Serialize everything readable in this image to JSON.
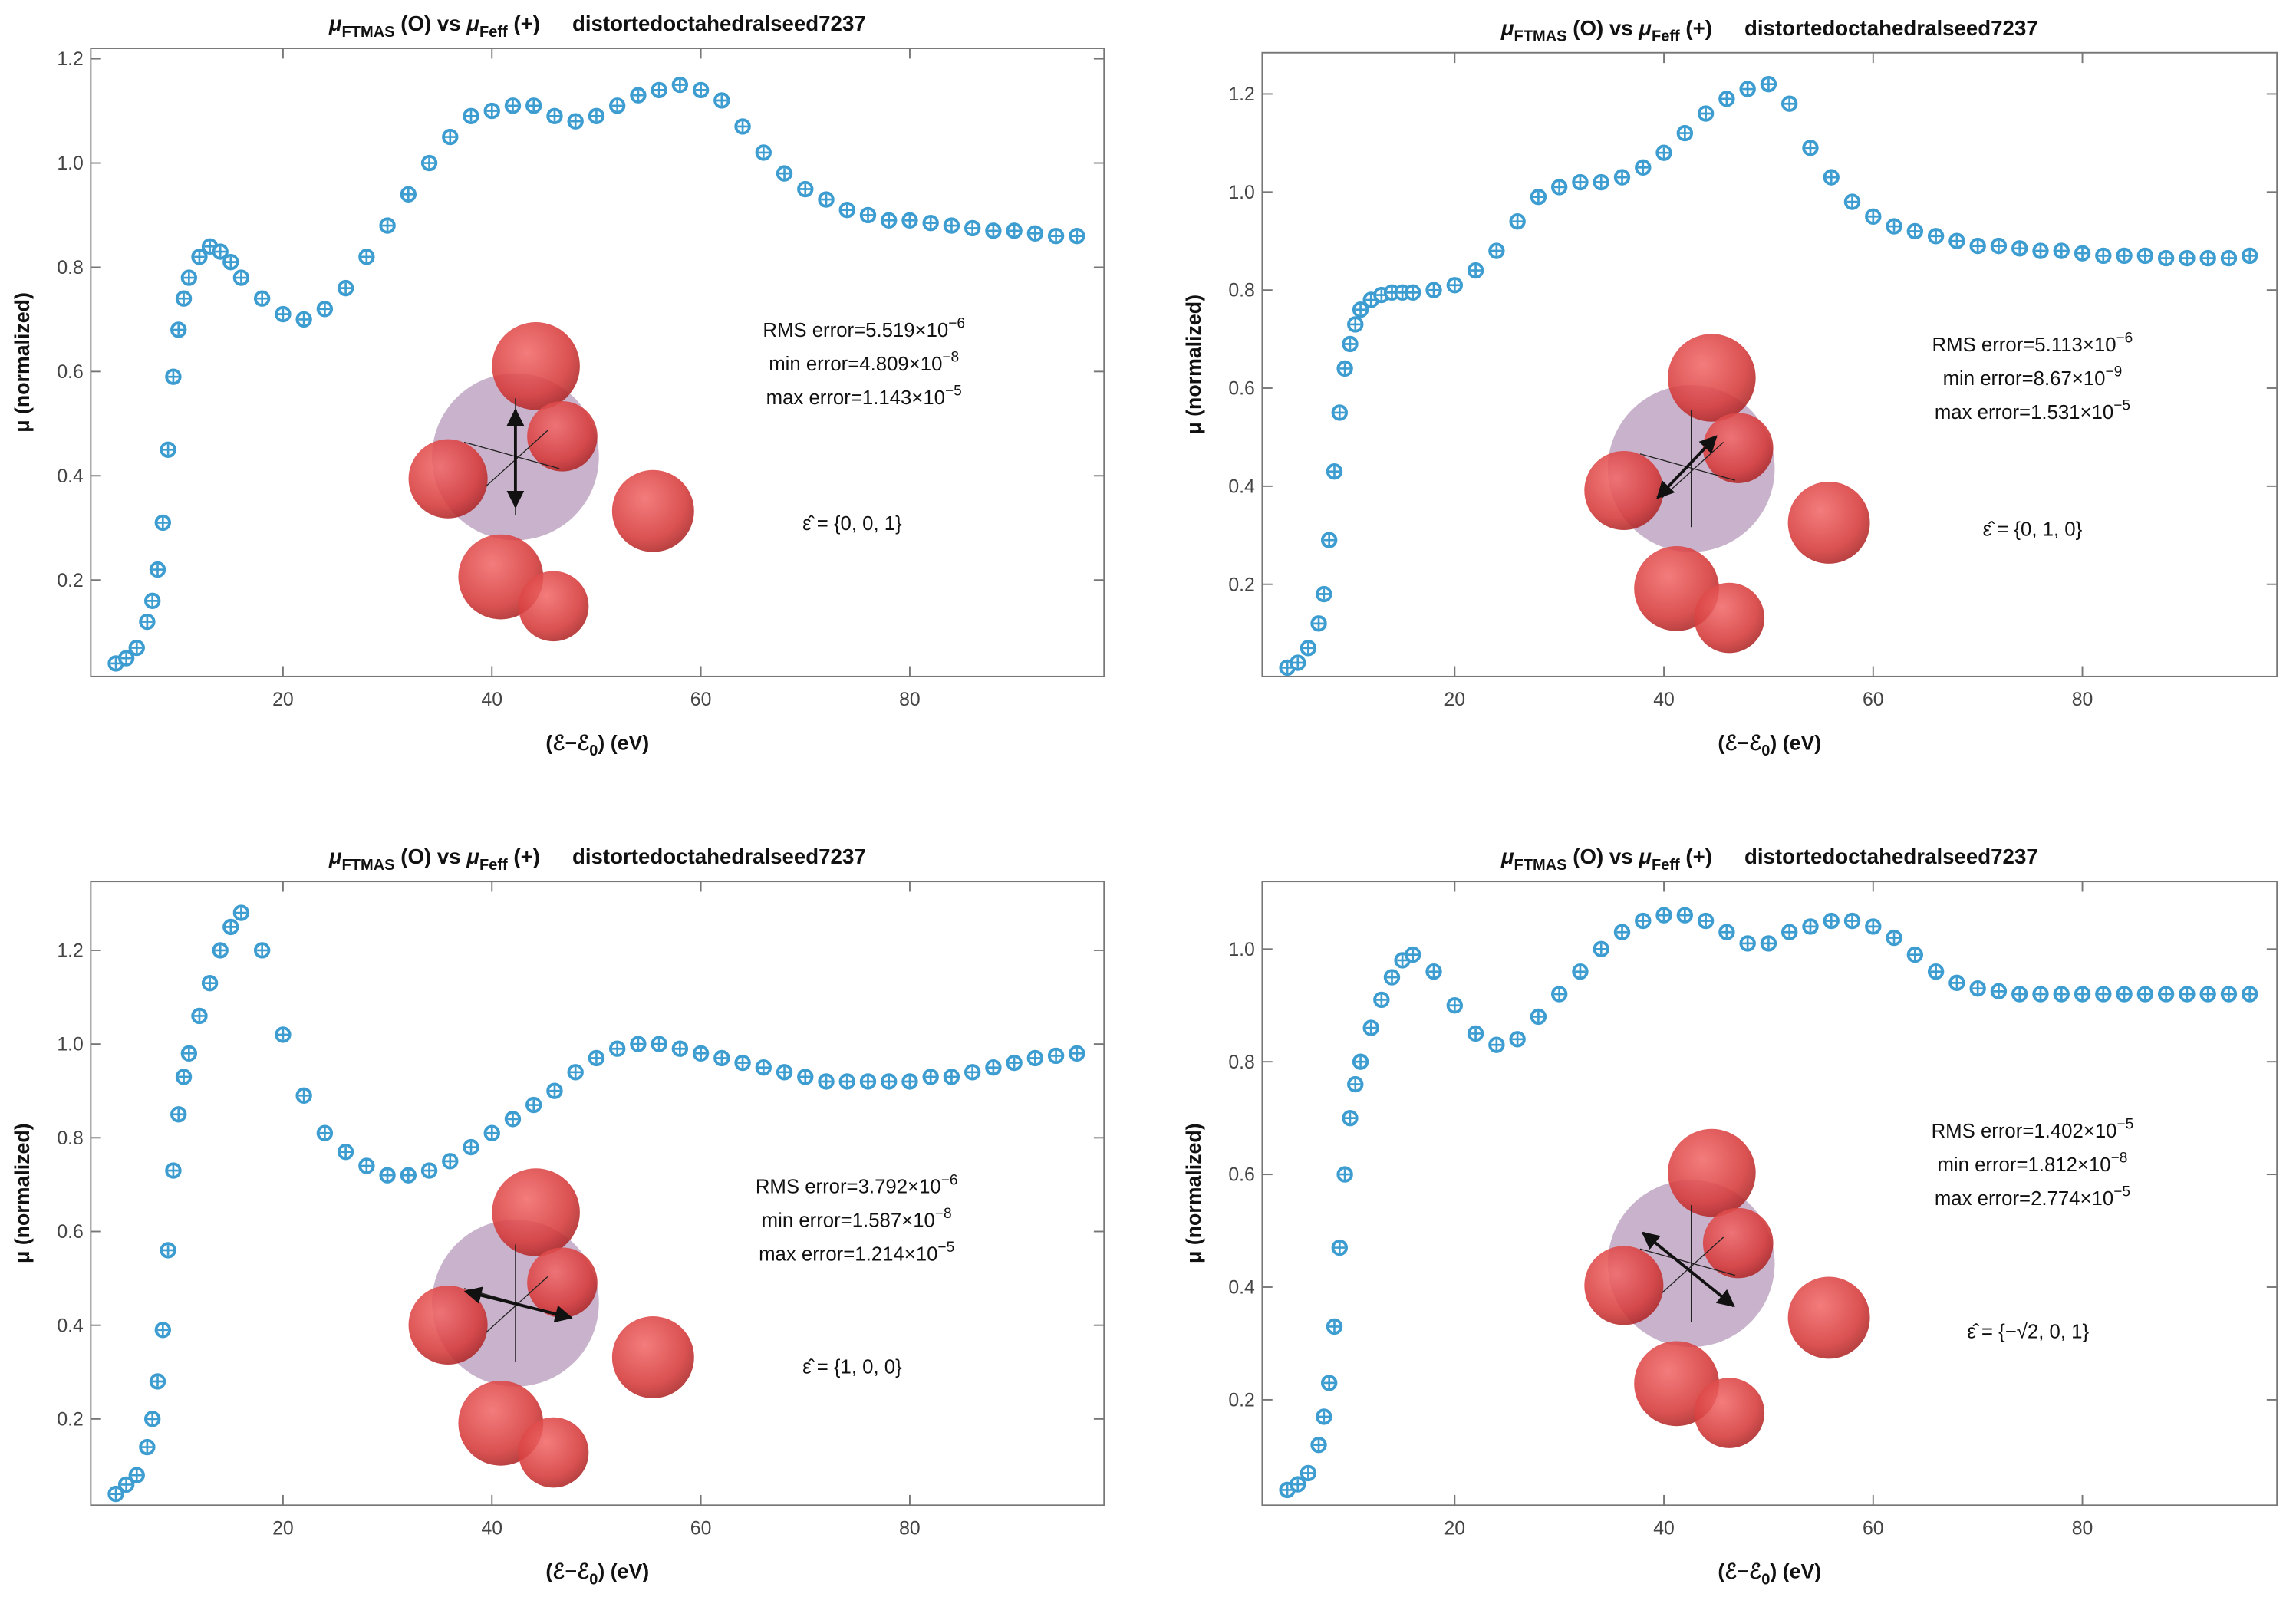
{
  "chart_data": [
    {
      "type": "scatter",
      "title_parts": [
        "μ",
        "FTMAS",
        " (O) vs ",
        "μ",
        "Feff",
        " (+)",
        "distortedoctahedralseed7237"
      ],
      "x_label": [
        "(ℰ−ℰ",
        "0",
        ") (eV)"
      ],
      "y_label": "μ (normalized)",
      "color": "#3d9dd0",
      "xlim": [
        1.6,
        98.6
      ],
      "ylim": [
        0.015,
        1.22
      ],
      "xticks": [
        20,
        40,
        60,
        80
      ],
      "yticks": [
        0.2,
        0.4,
        0.6,
        0.8,
        {
          "value": 1,
          "label": "1.0"
        },
        1.2
      ],
      "x": [
        4,
        5,
        6,
        7,
        7.5,
        8,
        8.5,
        9,
        9.5,
        10,
        10.5,
        11,
        12,
        13,
        14,
        15,
        16,
        18,
        20,
        22,
        24,
        26,
        28,
        30,
        32,
        34,
        36,
        38,
        40,
        42,
        44,
        46,
        48,
        50,
        52,
        54,
        56,
        58,
        60,
        62,
        64,
        66,
        68,
        70,
        72,
        74,
        76,
        78,
        80,
        82,
        84,
        86,
        88,
        90,
        92,
        94,
        96
      ],
      "values": [
        0.04,
        0.05,
        0.07,
        0.12,
        0.16,
        0.22,
        0.31,
        0.45,
        0.59,
        0.68,
        0.74,
        0.78,
        0.82,
        0.84,
        0.83,
        0.81,
        0.78,
        0.74,
        0.71,
        0.7,
        0.72,
        0.76,
        0.82,
        0.88,
        0.94,
        1.0,
        1.05,
        1.09,
        1.1,
        1.11,
        1.11,
        1.09,
        1.08,
        1.09,
        1.11,
        1.13,
        1.14,
        1.15,
        1.14,
        1.12,
        1.07,
        1.02,
        0.98,
        0.95,
        0.93,
        0.91,
        0.9,
        0.89,
        0.89,
        0.885,
        0.88,
        0.875,
        0.87,
        0.87,
        0.865,
        0.86,
        0.86
      ],
      "annotations": [
        [
          "RMS error=5.519×10",
          "−6"
        ],
        [
          "min error=4.809×10",
          "−8"
        ],
        [
          "max error=1.143×10",
          "−5"
        ]
      ],
      "polarization": "ε̂ = {0, 0, 1}"
    },
    {
      "type": "scatter",
      "title_parts": [
        "μ",
        "FTMAS",
        " (O) vs ",
        "μ",
        "Feff",
        " (+)",
        "distortedoctahedralseed7237"
      ],
      "x_label": [
        "(ℰ−ℰ",
        "0",
        ") (eV)"
      ],
      "y_label": "μ (normalized)",
      "color": "#3d9dd0",
      "xlim": [
        1.6,
        98.6
      ],
      "ylim": [
        0.012,
        1.284
      ],
      "xticks": [
        20,
        40,
        60,
        80
      ],
      "yticks": [
        0.2,
        0.4,
        0.6,
        0.8,
        {
          "value": 1,
          "label": "1.0"
        },
        1.2
      ],
      "x": [
        4,
        5,
        6,
        7,
        7.5,
        8,
        8.5,
        9,
        9.5,
        10,
        10.5,
        11,
        12,
        13,
        14,
        15,
        16,
        18,
        20,
        22,
        24,
        26,
        28,
        30,
        32,
        34,
        36,
        38,
        40,
        42,
        44,
        46,
        48,
        50,
        52,
        54,
        56,
        58,
        60,
        62,
        64,
        66,
        68,
        70,
        72,
        74,
        76,
        78,
        80,
        82,
        84,
        86,
        88,
        90,
        92,
        94,
        96
      ],
      "values": [
        0.03,
        0.04,
        0.07,
        0.12,
        0.18,
        0.29,
        0.43,
        0.55,
        0.64,
        0.69,
        0.73,
        0.76,
        0.78,
        0.79,
        0.795,
        0.795,
        0.795,
        0.8,
        0.81,
        0.84,
        0.88,
        0.94,
        0.99,
        1.01,
        1.02,
        1.02,
        1.03,
        1.05,
        1.08,
        1.12,
        1.16,
        1.19,
        1.21,
        1.22,
        1.18,
        1.09,
        1.03,
        0.98,
        0.95,
        0.93,
        0.92,
        0.91,
        0.9,
        0.89,
        0.89,
        0.885,
        0.88,
        0.88,
        0.875,
        0.87,
        0.87,
        0.87,
        0.865,
        0.865,
        0.865,
        0.865,
        0.87
      ],
      "annotations": [
        [
          "RMS error=5.113×10",
          "−6"
        ],
        [
          "min error=8.67×10",
          "−9"
        ],
        [
          "max error=1.531×10",
          "−5"
        ]
      ],
      "polarization": "ε̂ = {0, 1, 0}"
    },
    {
      "type": "scatter",
      "title_parts": [
        "μ",
        "FTMAS",
        " (O) vs ",
        "μ",
        "Feff",
        " (+)",
        "distortedoctahedralseed7237"
      ],
      "x_label": [
        "(ℰ−ℰ",
        "0",
        ") (eV)"
      ],
      "y_label": "μ (normalized)",
      "color": "#3d9dd0",
      "xlim": [
        1.6,
        98.6
      ],
      "ylim": [
        0.016,
        1.347
      ],
      "xticks": [
        20,
        40,
        60,
        80
      ],
      "yticks": [
        0.2,
        0.4,
        0.6,
        0.8,
        {
          "value": 1,
          "label": "1.0"
        },
        1.2
      ],
      "x": [
        4,
        5,
        6,
        7,
        7.5,
        8,
        8.5,
        9,
        9.5,
        10,
        10.5,
        11,
        12,
        13,
        14,
        15,
        16,
        18,
        20,
        22,
        24,
        26,
        28,
        30,
        32,
        34,
        36,
        38,
        40,
        42,
        44,
        46,
        48,
        50,
        52,
        54,
        56,
        58,
        60,
        62,
        64,
        66,
        68,
        70,
        72,
        74,
        76,
        78,
        80,
        82,
        84,
        86,
        88,
        90,
        92,
        94,
        96
      ],
      "values": [
        0.04,
        0.06,
        0.08,
        0.14,
        0.2,
        0.28,
        0.39,
        0.56,
        0.73,
        0.85,
        0.93,
        0.98,
        1.06,
        1.13,
        1.2,
        1.25,
        1.28,
        1.2,
        1.02,
        0.89,
        0.81,
        0.77,
        0.74,
        0.72,
        0.72,
        0.73,
        0.75,
        0.78,
        0.81,
        0.84,
        0.87,
        0.9,
        0.94,
        0.97,
        0.99,
        1.0,
        1.0,
        0.99,
        0.98,
        0.97,
        0.96,
        0.95,
        0.94,
        0.93,
        0.92,
        0.92,
        0.92,
        0.92,
        0.92,
        0.93,
        0.93,
        0.94,
        0.95,
        0.96,
        0.97,
        0.975,
        0.98
      ],
      "annotations": [
        [
          "RMS error=3.792×10",
          "−6"
        ],
        [
          "min error=1.587×10",
          "−8"
        ],
        [
          "max error=1.214×10",
          "−5"
        ]
      ],
      "polarization": "ε̂ = {1, 0, 0}"
    },
    {
      "type": "scatter",
      "title_parts": [
        "μ",
        "FTMAS",
        " (O) vs ",
        "μ",
        "Feff",
        " (+)",
        "distortedoctahedralseed7237"
      ],
      "x_label": [
        "(ℰ−ℰ",
        "0",
        ") (eV)"
      ],
      "y_label": "μ (normalized)",
      "color": "#3d9dd0",
      "xlim": [
        1.6,
        98.6
      ],
      "ylim": [
        0.013,
        1.12
      ],
      "xticks": [
        20,
        40,
        60,
        80
      ],
      "yticks": [
        0.2,
        0.4,
        0.6,
        0.8,
        {
          "value": 1,
          "label": "1.0"
        }
      ],
      "x": [
        4,
        5,
        6,
        7,
        7.5,
        8,
        8.5,
        9,
        9.5,
        10,
        10.5,
        11,
        12,
        13,
        14,
        15,
        16,
        18,
        20,
        22,
        24,
        26,
        28,
        30,
        32,
        34,
        36,
        38,
        40,
        42,
        44,
        46,
        48,
        50,
        52,
        54,
        56,
        58,
        60,
        62,
        64,
        66,
        68,
        70,
        72,
        74,
        76,
        78,
        80,
        82,
        84,
        86,
        88,
        90,
        92,
        94,
        96
      ],
      "values": [
        0.04,
        0.05,
        0.07,
        0.12,
        0.17,
        0.23,
        0.33,
        0.47,
        0.6,
        0.7,
        0.76,
        0.8,
        0.86,
        0.91,
        0.95,
        0.98,
        0.99,
        0.96,
        0.9,
        0.85,
        0.83,
        0.84,
        0.88,
        0.92,
        0.96,
        1.0,
        1.03,
        1.05,
        1.06,
        1.06,
        1.05,
        1.03,
        1.01,
        1.01,
        1.03,
        1.04,
        1.05,
        1.05,
        1.04,
        1.02,
        0.99,
        0.96,
        0.94,
        0.93,
        0.925,
        0.92,
        0.92,
        0.92,
        0.92,
        0.92,
        0.92,
        0.92,
        0.92,
        0.92,
        0.92,
        0.92,
        0.92
      ],
      "annotations": [
        [
          "RMS error=1.402×10",
          "−5"
        ],
        [
          "min error=1.812×10",
          "−8"
        ],
        [
          "max error=2.774×10",
          "−5"
        ]
      ],
      "polarization": "ε̂ = {−√2, 0, 1}"
    }
  ]
}
